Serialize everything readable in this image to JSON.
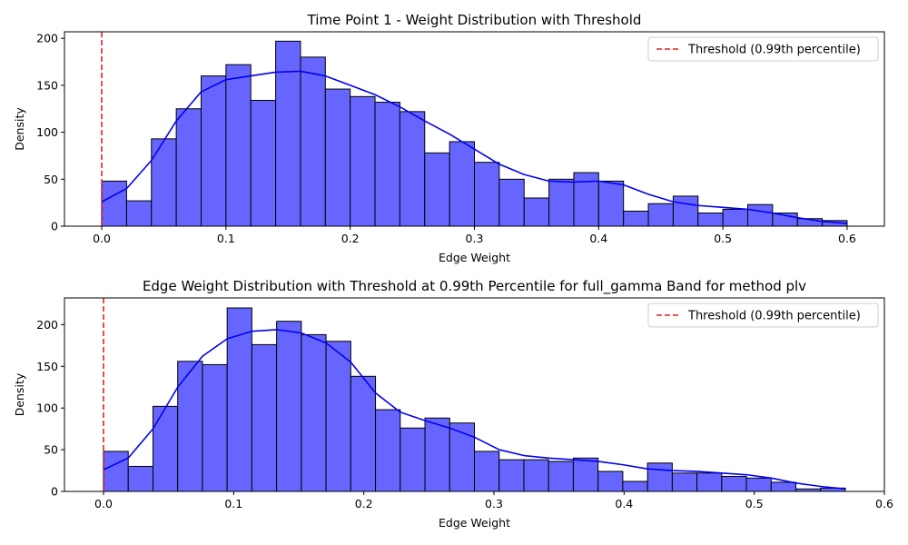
{
  "chart_data": [
    {
      "type": "bar",
      "title": "Time Point 1 - Weight Distribution with Threshold",
      "xlabel": "Edge Weight",
      "ylabel": "Density",
      "xlim": [
        -0.03,
        0.63
      ],
      "ylim": [
        0,
        207
      ],
      "xticks": [
        0.0,
        0.1,
        0.2,
        0.3,
        0.4,
        0.5,
        0.6
      ],
      "xtick_labels": [
        "0.0",
        "0.1",
        "0.2",
        "0.3",
        "0.4",
        "0.5",
        "0.6"
      ],
      "yticks": [
        0,
        50,
        100,
        150,
        200
      ],
      "ytick_labels": [
        "0",
        "50",
        "100",
        "150",
        "200"
      ],
      "bin_start": 0.0,
      "bin_width": 0.02,
      "values": [
        48,
        27,
        93,
        125,
        160,
        172,
        134,
        197,
        180,
        146,
        138,
        132,
        122,
        78,
        90,
        68,
        50,
        30,
        50,
        57,
        48,
        16,
        24,
        32,
        14,
        18,
        23,
        14,
        8,
        6
      ],
      "kde": {
        "x": [
          0.0,
          0.02,
          0.04,
          0.06,
          0.08,
          0.1,
          0.12,
          0.14,
          0.16,
          0.18,
          0.2,
          0.22,
          0.24,
          0.26,
          0.28,
          0.3,
          0.32,
          0.34,
          0.36,
          0.38,
          0.4,
          0.42,
          0.44,
          0.46,
          0.48,
          0.5,
          0.52,
          0.54,
          0.56,
          0.58,
          0.6
        ],
        "y": [
          26,
          40,
          70,
          112,
          143,
          156,
          160,
          164,
          165,
          160,
          150,
          140,
          127,
          112,
          98,
          82,
          66,
          55,
          48,
          47,
          48,
          44,
          34,
          26,
          22,
          20,
          18,
          14,
          9,
          5,
          3
        ]
      },
      "threshold": {
        "x": 0.0,
        "label": "Threshold (0.99th percentile)",
        "color": "#d62728"
      },
      "legend_loc": "upper right",
      "bar_color": "#6666ff",
      "line_color": "#0000ee"
    },
    {
      "type": "bar",
      "title": "Edge Weight Distribution with Threshold at 0.99th Percentile for full_gamma Band for method plv",
      "xlabel": "Edge Weight",
      "ylabel": "Density",
      "xlim": [
        -0.03,
        0.6
      ],
      "ylim": [
        0,
        232
      ],
      "xticks": [
        0.0,
        0.1,
        0.2,
        0.3,
        0.4,
        0.5,
        0.6
      ],
      "xtick_labels": [
        "0.0",
        "0.1",
        "0.2",
        "0.3",
        "0.4",
        "0.5",
        "0.6"
      ],
      "yticks": [
        0,
        50,
        100,
        150,
        200
      ],
      "ytick_labels": [
        "0",
        "50",
        "100",
        "150",
        "200"
      ],
      "bin_start": 0.0,
      "bin_width": 0.019,
      "values": [
        48,
        30,
        102,
        156,
        152,
        220,
        176,
        204,
        188,
        180,
        138,
        98,
        76,
        88,
        82,
        48,
        38,
        38,
        36,
        40,
        24,
        12,
        34,
        22,
        22,
        18,
        16,
        11,
        3,
        4
      ],
      "kde": {
        "x": [
          0.0,
          0.019,
          0.038,
          0.057,
          0.076,
          0.095,
          0.114,
          0.133,
          0.152,
          0.171,
          0.19,
          0.209,
          0.228,
          0.247,
          0.266,
          0.285,
          0.304,
          0.323,
          0.342,
          0.361,
          0.38,
          0.399,
          0.418,
          0.437,
          0.456,
          0.475,
          0.494,
          0.513,
          0.532,
          0.551,
          0.57
        ],
        "y": [
          26,
          40,
          75,
          125,
          162,
          183,
          192,
          194,
          190,
          178,
          155,
          118,
          95,
          85,
          76,
          65,
          50,
          43,
          40,
          38,
          36,
          32,
          27,
          25,
          24,
          22,
          20,
          16,
          10,
          6,
          3
        ]
      },
      "threshold": {
        "x": 0.0,
        "label": "Threshold (0.99th percentile)",
        "color": "#d62728"
      },
      "legend_loc": "upper right",
      "bar_color": "#6666ff",
      "line_color": "#0000ee"
    }
  ]
}
